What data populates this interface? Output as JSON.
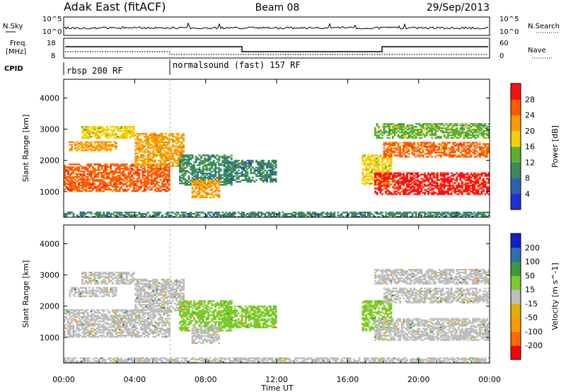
{
  "header": {
    "title": "Adak East (fitACF)",
    "beam": "Beam 08",
    "date": "29/Sep/2013"
  },
  "top_panel": {
    "nsky_label": "N.Sky",
    "nsky_ticks": [
      "10^5",
      "10^0"
    ],
    "nsearch_label": "N.Search",
    "freq_label_1": "Freq.",
    "freq_label_2": "[MHz]",
    "freq_ticks": [
      "18",
      "8"
    ],
    "nave_label": "Nave",
    "nave_ticks": [
      "60",
      "0"
    ],
    "cpid_label": "CPID",
    "cpid_segments": [
      {
        "label": "rbsp 200 RF",
        "start_hour": 0
      },
      {
        "label": "normalsound (fast) 157 RF",
        "start_hour": 6
      }
    ]
  },
  "colors": {
    "power": [
      "#1f2fd6",
      "#2f5fb0",
      "#3a8a5a",
      "#5cb030",
      "#f5d000",
      "#ff9a00",
      "#ff5a00",
      "#ff1010"
    ],
    "velocity": [
      "#ff0000",
      "#ff6a00",
      "#ff9a00",
      "#e0b000",
      "#bdbdbd",
      "#7acb2a",
      "#3a9a40",
      "#2f6fb0",
      "#1020c8"
    ],
    "ground_scatter": "#bdbdbd"
  },
  "chart_data": [
    {
      "type": "heatmap",
      "name": "power",
      "ylabel": "Slant Range [km]",
      "xlabel": "Time UT",
      "xlim": [
        0,
        24
      ],
      "ylim": [
        180,
        4600
      ],
      "yticks": [
        1000,
        2000,
        3000,
        4000
      ],
      "xticks": [
        "00:00",
        "04:00",
        "08:00",
        "12:00",
        "16:00",
        "20:00",
        "00:00"
      ],
      "colorbar_label": "Power [dB]",
      "colorbar_ticks": [
        "4",
        "8",
        "12",
        "16",
        "20",
        "24",
        "28"
      ],
      "colorbar_range": [
        0,
        32
      ],
      "bands": [
        {
          "hour_start": 0.0,
          "hour_end": 6.0,
          "range_start": 1000,
          "range_end": 1900,
          "power": 26
        },
        {
          "hour_start": 0.3,
          "hour_end": 3.0,
          "range_start": 2300,
          "range_end": 2600,
          "power": 22
        },
        {
          "hour_start": 1.0,
          "hour_end": 4.0,
          "range_start": 2700,
          "range_end": 3100,
          "power": 18
        },
        {
          "hour_start": 4.0,
          "hour_end": 6.8,
          "range_start": 1800,
          "range_end": 2900,
          "power": 20
        },
        {
          "hour_start": 6.5,
          "hour_end": 9.5,
          "range_start": 1200,
          "range_end": 2200,
          "power": 10
        },
        {
          "hour_start": 7.2,
          "hour_end": 8.8,
          "range_start": 800,
          "range_end": 1400,
          "power": 22
        },
        {
          "hour_start": 9.0,
          "hour_end": 12.0,
          "range_start": 1300,
          "range_end": 2000,
          "power": 8
        },
        {
          "hour_start": 16.8,
          "hour_end": 18.5,
          "range_start": 1200,
          "range_end": 2200,
          "power": 18
        },
        {
          "hour_start": 17.5,
          "hour_end": 24.0,
          "range_start": 900,
          "range_end": 1600,
          "power": 28
        },
        {
          "hour_start": 18.0,
          "hour_end": 24.0,
          "range_start": 2100,
          "range_end": 2600,
          "power": 24
        },
        {
          "hour_start": 17.5,
          "hour_end": 24.0,
          "range_start": 2700,
          "range_end": 3200,
          "power": 14
        },
        {
          "hour_start": 0.0,
          "hour_end": 24.0,
          "range_start": 180,
          "range_end": 350,
          "power": 8
        }
      ]
    },
    {
      "type": "heatmap",
      "name": "velocity",
      "ylabel": "Slant Range [km]",
      "xlabel": "Time UT",
      "xlim": [
        0,
        24
      ],
      "ylim": [
        180,
        4600
      ],
      "yticks": [
        1000,
        2000,
        3000,
        4000
      ],
      "xticks": [
        "00:00",
        "04:00",
        "08:00",
        "12:00",
        "16:00",
        "20:00",
        "00:00"
      ],
      "colorbar_label": "Velocity [m s^-1]",
      "colorbar_ticks": [
        "200",
        "100",
        "50",
        "15",
        "-15",
        "-50",
        "-100",
        "-200"
      ],
      "colorbar_range": [
        -250,
        250
      ],
      "bands": [
        {
          "hour_start": 0.0,
          "hour_end": 6.0,
          "range_start": 1000,
          "range_end": 1900,
          "velocity": 0
        },
        {
          "hour_start": 0.3,
          "hour_end": 3.0,
          "range_start": 2300,
          "range_end": 2600,
          "velocity": 0
        },
        {
          "hour_start": 1.0,
          "hour_end": 4.0,
          "range_start": 2700,
          "range_end": 3100,
          "velocity": 5
        },
        {
          "hour_start": 4.0,
          "hour_end": 6.8,
          "range_start": 1800,
          "range_end": 2900,
          "velocity": 0
        },
        {
          "hour_start": 6.5,
          "hour_end": 9.5,
          "range_start": 1200,
          "range_end": 2200,
          "velocity": 30
        },
        {
          "hour_start": 7.2,
          "hour_end": 8.8,
          "range_start": 800,
          "range_end": 1400,
          "velocity": 0
        },
        {
          "hour_start": 9.0,
          "hour_end": 12.0,
          "range_start": 1300,
          "range_end": 2000,
          "velocity": 40
        },
        {
          "hour_start": 16.8,
          "hour_end": 18.5,
          "range_start": 1200,
          "range_end": 2200,
          "velocity": 60
        },
        {
          "hour_start": 17.5,
          "hour_end": 24.0,
          "range_start": 900,
          "range_end": 1600,
          "velocity": 0
        },
        {
          "hour_start": 18.0,
          "hour_end": 24.0,
          "range_start": 2100,
          "range_end": 2600,
          "velocity": 0
        },
        {
          "hour_start": 17.5,
          "hour_end": 24.0,
          "range_start": 2700,
          "range_end": 3200,
          "velocity": 20
        },
        {
          "hour_start": 0.0,
          "hour_end": 24.0,
          "range_start": 180,
          "range_end": 350,
          "velocity": 10
        }
      ]
    }
  ]
}
